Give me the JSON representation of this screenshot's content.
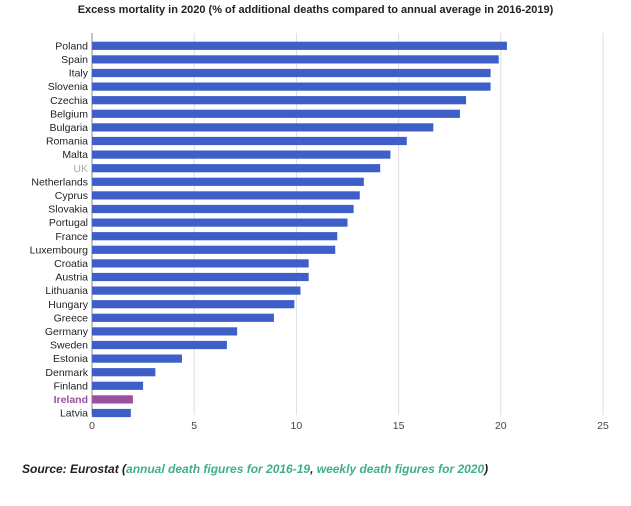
{
  "chart_data": {
    "type": "bar",
    "orientation": "horizontal",
    "title": "Excess mortality in 2020 (% of additional deaths compared to annual average in 2016-2019)",
    "xlabel": "",
    "ylabel": "",
    "xlim": [
      0,
      25
    ],
    "xticks": [
      "0",
      "5",
      "10",
      "15",
      "20",
      "25"
    ],
    "grid": true,
    "categories": [
      "Poland",
      "Spain",
      "Italy",
      "Slovenia",
      "Czechia",
      "Belgium",
      "Bulgaria",
      "Romania",
      "Malta",
      "UK",
      "Netherlands",
      "Cyprus",
      "Slovakia",
      "Portugal",
      "France",
      "Luxembourg",
      "Croatia",
      "Austria",
      "Lithuania",
      "Hungary",
      "Greece",
      "Germany",
      "Sweden",
      "Estonia",
      "Denmark",
      "Finland",
      "Ireland",
      "Latvia"
    ],
    "values": [
      20.3,
      19.9,
      19.5,
      19.5,
      18.3,
      18.0,
      16.7,
      15.4,
      14.6,
      14.1,
      13.3,
      13.1,
      12.8,
      12.5,
      12.0,
      11.9,
      10.6,
      10.6,
      10.2,
      9.9,
      8.9,
      7.1,
      6.6,
      4.4,
      3.1,
      2.5,
      2.0,
      1.9
    ],
    "colors": {
      "default": "#3d5fc7",
      "highlight": "#9b4f9e",
      "uk_label": "#aaaaaa",
      "grid": "#dddddd"
    },
    "highlight_category": "Ireland",
    "muted_category": "UK"
  },
  "source": {
    "prefix": "Source: Eurostat (",
    "link1": "annual death figures for 2016-19",
    "sep": ", ",
    "link2": "weekly death figures for 2020",
    "suffix": ")"
  }
}
